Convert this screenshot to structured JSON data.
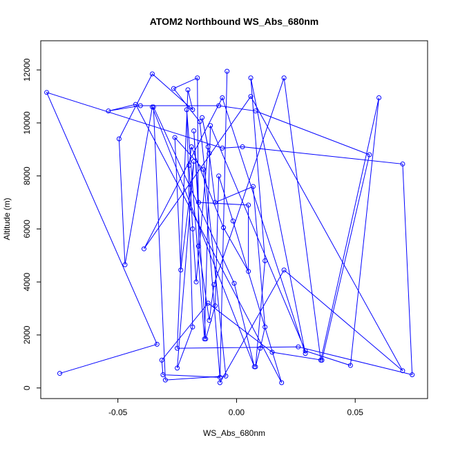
{
  "chart_data": {
    "type": "line",
    "title": "ATOM2 Northbound WS_Abs_680nm",
    "xlabel": "WS_Abs_680nm",
    "ylabel": "Altitude (m)",
    "xlim": [
      -0.0825,
      0.0805
    ],
    "ylim": [
      -400,
      13100
    ],
    "x_ticks": [
      -0.05,
      0.0,
      0.05
    ],
    "x_tick_labels": [
      "-0.05",
      "0.00",
      "0.05"
    ],
    "y_ticks": [
      0,
      2000,
      4000,
      6000,
      8000,
      10000,
      12000
    ],
    "y_tick_labels": [
      "0",
      "2000",
      "4000",
      "6000",
      "8000",
      "10000",
      "12000"
    ],
    "grid": false,
    "markers": "open-circle",
    "color": "#0000ff",
    "series": [
      {
        "points": [
          [
            -0.0745,
            550
          ],
          [
            -0.0335,
            1650
          ],
          [
            -0.08,
            11150
          ],
          [
            -0.006,
            9050
          ],
          [
            0.0025,
            9100
          ],
          [
            0.07,
            8450
          ],
          [
            0.074,
            500
          ],
          [
            0.026,
            1550
          ],
          [
            -0.025,
            1500
          ],
          [
            -0.0205,
            11250
          ],
          [
            -0.0185,
            10500
          ],
          [
            -0.0355,
            11850
          ],
          [
            -0.0495,
            9400
          ],
          [
            -0.047,
            4650
          ],
          [
            -0.0355,
            10600
          ],
          [
            0.0075,
            800
          ],
          [
            -0.001,
            3950
          ],
          [
            -0.035,
            10600
          ],
          [
            -0.03,
            300
          ],
          [
            -0.0045,
            450
          ],
          [
            -0.0155,
            10050
          ],
          [
            -0.0265,
            11300
          ],
          [
            -0.0165,
            11700
          ],
          [
            -0.016,
            5350
          ],
          [
            -0.0115,
            2550
          ],
          [
            -0.0095,
            3900
          ],
          [
            0.02,
            11700
          ],
          [
            0.0355,
            1050
          ],
          [
            0.06,
            10950
          ],
          [
            0.048,
            850
          ],
          [
            0.029,
            1400
          ],
          [
            -0.011,
            9900
          ],
          [
            -0.0135,
            1850
          ],
          [
            -0.021,
            10500
          ],
          [
            -0.0185,
            2300
          ],
          [
            -0.025,
            750
          ],
          [
            -0.018,
            8550
          ],
          [
            -0.0235,
            4450
          ],
          [
            -0.026,
            9450
          ],
          [
            -0.014,
            8250
          ],
          [
            -0.007,
            400
          ],
          [
            -0.031,
            500
          ],
          [
            -0.0315,
            1050
          ],
          [
            -0.012,
            3200
          ],
          [
            0.015,
            1350
          ],
          [
            0.036,
            1050
          ],
          [
            0.056,
            8800
          ],
          [
            0.008,
            10450
          ],
          [
            -0.0075,
            10650
          ],
          [
            -0.0405,
            10650
          ],
          [
            -0.054,
            10450
          ],
          [
            -0.0425,
            10700
          ],
          [
            0.019,
            200
          ],
          [
            -0.0015,
            6300
          ],
          [
            -0.0075,
            8000
          ],
          [
            -0.009,
            3100
          ],
          [
            -0.013,
            1850
          ],
          [
            -0.018,
            9700
          ],
          [
            -0.016,
            7000
          ],
          [
            0.005,
            6900
          ],
          [
            0.005,
            4400
          ],
          [
            -0.0055,
            6050
          ],
          [
            -0.019,
            9100
          ],
          [
            -0.02,
            8400
          ],
          [
            -0.0185,
            6000
          ],
          [
            -0.017,
            4000
          ],
          [
            -0.012,
            9100
          ],
          [
            -0.0145,
            10200
          ],
          [
            -0.0115,
            8850
          ],
          [
            -0.009,
            7000
          ],
          [
            0.007,
            7600
          ],
          [
            0.012,
            2300
          ],
          [
            0.01,
            1500
          ],
          [
            0.008,
            800
          ],
          [
            0.012,
            4800
          ],
          [
            0.006,
            11700
          ],
          [
            0.029,
            1300
          ],
          [
            -0.006,
            10950
          ],
          [
            -0.039,
            5250
          ],
          [
            0.006,
            11000
          ],
          [
            0.07,
            650
          ],
          [
            0.02,
            4450
          ],
          [
            -0.007,
            200
          ],
          [
            -0.004,
            11950
          ]
        ]
      }
    ]
  }
}
